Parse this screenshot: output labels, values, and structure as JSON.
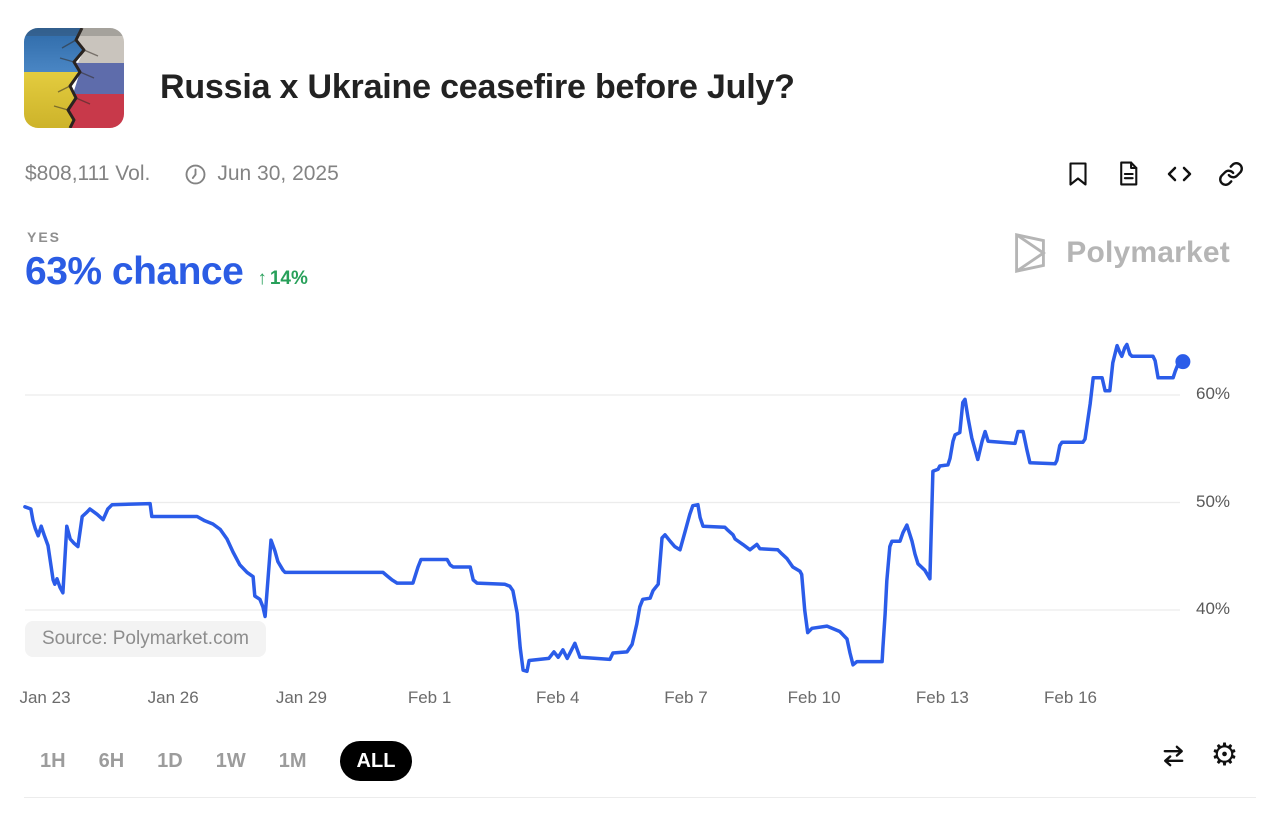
{
  "header": {
    "title": "Russia x Ukraine ceasefire before July?",
    "volume": "$808,111 Vol.",
    "end_date": "Jun 30, 2025"
  },
  "header_action_icons": [
    "bookmark",
    "document",
    "embed-code",
    "copy-link"
  ],
  "outcome": {
    "label": "YES",
    "chance": "63% chance",
    "delta_arrow": "↑",
    "delta": "14%"
  },
  "watermark": {
    "brand": "Polymarket"
  },
  "toolbar": {
    "ranges": [
      "1H",
      "6H",
      "1D",
      "1W",
      "1M",
      "ALL"
    ],
    "active": "ALL"
  },
  "footer_tool_icons": [
    "compare-markets",
    "settings-gear"
  ],
  "colors": {
    "accent_blue": "#2b5ce4",
    "line_blue": "#2b5ce9",
    "positive_green": "#28a05a",
    "grid_gray": "#ececec",
    "watermark_gray": "#b5b5b5"
  },
  "chart_data": {
    "type": "line",
    "title": "YES outcome price history",
    "x_unit": "days since Jan 23",
    "grid": "horizontal",
    "legend": "none",
    "source_label": "Source: Polymarket.com",
    "ylim": [
      32,
      66
    ],
    "y_ticks": [
      {
        "label": "60%",
        "value": 60
      },
      {
        "label": "50%",
        "value": 50
      },
      {
        "label": "40%",
        "value": 40
      }
    ],
    "x_ticks": [
      {
        "label": "Jan 23",
        "day": 0
      },
      {
        "label": "Jan 26",
        "day": 3
      },
      {
        "label": "Jan 29",
        "day": 6
      },
      {
        "label": "Feb 1",
        "day": 9
      },
      {
        "label": "Feb 4",
        "day": 12
      },
      {
        "label": "Feb 7",
        "day": 15
      },
      {
        "label": "Feb 10",
        "day": 18
      },
      {
        "label": "Feb 13",
        "day": 21
      },
      {
        "label": "Feb 16",
        "day": 24
      }
    ],
    "series": [
      {
        "name": "YES",
        "current_value_pct": 63,
        "end_marker": true,
        "points": [
          [
            -0.47,
            49.6
          ],
          [
            -0.33,
            49.4
          ],
          [
            -0.28,
            48.3
          ],
          [
            -0.23,
            47.6
          ],
          [
            -0.16,
            46.9
          ],
          [
            -0.09,
            47.8
          ],
          [
            -0.02,
            47.0
          ],
          [
            0.07,
            46.0
          ],
          [
            0.19,
            42.8
          ],
          [
            0.23,
            42.4
          ],
          [
            0.28,
            42.9
          ],
          [
            0.35,
            42.1
          ],
          [
            0.42,
            41.6
          ],
          [
            0.51,
            47.8
          ],
          [
            0.59,
            46.6
          ],
          [
            0.68,
            46.2
          ],
          [
            0.77,
            45.9
          ],
          [
            0.87,
            48.7
          ],
          [
            0.98,
            49.1
          ],
          [
            1.05,
            49.4
          ],
          [
            1.22,
            48.9
          ],
          [
            1.36,
            48.4
          ],
          [
            1.47,
            49.4
          ],
          [
            1.57,
            49.8
          ],
          [
            2.46,
            49.9
          ],
          [
            2.5,
            48.7
          ],
          [
            3.56,
            48.7
          ],
          [
            3.74,
            48.3
          ],
          [
            3.93,
            48.0
          ],
          [
            4.1,
            47.5
          ],
          [
            4.26,
            46.6
          ],
          [
            4.4,
            45.4
          ],
          [
            4.56,
            44.2
          ],
          [
            4.73,
            43.5
          ],
          [
            4.87,
            43.1
          ],
          [
            4.91,
            41.3
          ],
          [
            5.03,
            41.0
          ],
          [
            5.1,
            40.3
          ],
          [
            5.15,
            39.4
          ],
          [
            5.22,
            43.0
          ],
          [
            5.29,
            46.5
          ],
          [
            5.38,
            45.5
          ],
          [
            5.45,
            44.5
          ],
          [
            5.57,
            43.7
          ],
          [
            5.62,
            43.5
          ],
          [
            7.91,
            43.5
          ],
          [
            8.0,
            43.2
          ],
          [
            8.12,
            42.8
          ],
          [
            8.24,
            42.5
          ],
          [
            8.61,
            42.5
          ],
          [
            8.73,
            44.0
          ],
          [
            8.8,
            44.7
          ],
          [
            9.41,
            44.7
          ],
          [
            9.48,
            44.2
          ],
          [
            9.55,
            44.0
          ],
          [
            9.95,
            44.0
          ],
          [
            10.02,
            42.8
          ],
          [
            10.11,
            42.5
          ],
          [
            10.76,
            42.4
          ],
          [
            10.88,
            42.2
          ],
          [
            10.95,
            41.8
          ],
          [
            11.05,
            39.7
          ],
          [
            11.12,
            36.5
          ],
          [
            11.19,
            34.4
          ],
          [
            11.28,
            34.3
          ],
          [
            11.33,
            35.3
          ],
          [
            11.79,
            35.5
          ],
          [
            11.91,
            36.1
          ],
          [
            12.01,
            35.6
          ],
          [
            12.12,
            36.3
          ],
          [
            12.22,
            35.5
          ],
          [
            12.4,
            36.9
          ],
          [
            12.52,
            35.6
          ],
          [
            13.22,
            35.4
          ],
          [
            13.29,
            36.0
          ],
          [
            13.62,
            36.1
          ],
          [
            13.74,
            36.8
          ],
          [
            13.85,
            38.7
          ],
          [
            13.92,
            40.3
          ],
          [
            13.99,
            41.0
          ],
          [
            14.16,
            41.1
          ],
          [
            14.23,
            41.8
          ],
          [
            14.35,
            42.4
          ],
          [
            14.39,
            44.3
          ],
          [
            14.44,
            46.7
          ],
          [
            14.51,
            47.0
          ],
          [
            14.63,
            46.4
          ],
          [
            14.74,
            45.9
          ],
          [
            14.86,
            45.6
          ],
          [
            14.98,
            47.3
          ],
          [
            15.09,
            48.9
          ],
          [
            15.16,
            49.7
          ],
          [
            15.28,
            49.8
          ],
          [
            15.33,
            48.6
          ],
          [
            15.4,
            47.8
          ],
          [
            15.91,
            47.7
          ],
          [
            15.96,
            47.5
          ],
          [
            16.1,
            47.0
          ],
          [
            16.15,
            46.6
          ],
          [
            16.33,
            46.1
          ],
          [
            16.5,
            45.6
          ],
          [
            16.66,
            46.1
          ],
          [
            16.73,
            45.7
          ],
          [
            17.15,
            45.6
          ],
          [
            17.25,
            45.2
          ],
          [
            17.36,
            44.8
          ],
          [
            17.5,
            44.0
          ],
          [
            17.67,
            43.6
          ],
          [
            17.71,
            43.3
          ],
          [
            17.78,
            40.0
          ],
          [
            17.85,
            37.9
          ],
          [
            17.95,
            38.3
          ],
          [
            18.3,
            38.5
          ],
          [
            18.6,
            38.0
          ],
          [
            18.77,
            37.3
          ],
          [
            18.84,
            36.0
          ],
          [
            18.91,
            34.9
          ],
          [
            19.0,
            35.2
          ],
          [
            19.59,
            35.2
          ],
          [
            19.61,
            36.5
          ],
          [
            19.66,
            39.6
          ],
          [
            19.7,
            42.7
          ],
          [
            19.77,
            45.9
          ],
          [
            19.82,
            46.4
          ],
          [
            20.01,
            46.4
          ],
          [
            20.08,
            47.2
          ],
          [
            20.17,
            47.9
          ],
          [
            20.29,
            46.4
          ],
          [
            20.36,
            45.2
          ],
          [
            20.43,
            44.3
          ],
          [
            20.59,
            43.7
          ],
          [
            20.71,
            42.9
          ],
          [
            20.78,
            52.9
          ],
          [
            20.9,
            53.1
          ],
          [
            20.94,
            53.4
          ],
          [
            21.13,
            53.5
          ],
          [
            21.18,
            54.1
          ],
          [
            21.25,
            55.7
          ],
          [
            21.3,
            56.3
          ],
          [
            21.41,
            56.5
          ],
          [
            21.48,
            59.3
          ],
          [
            21.53,
            59.6
          ],
          [
            21.6,
            57.9
          ],
          [
            21.69,
            56.0
          ],
          [
            21.83,
            54.0
          ],
          [
            21.93,
            55.7
          ],
          [
            22.0,
            56.6
          ],
          [
            22.07,
            55.7
          ],
          [
            22.7,
            55.5
          ],
          [
            22.77,
            56.6
          ],
          [
            22.89,
            56.6
          ],
          [
            22.98,
            54.9
          ],
          [
            23.05,
            53.7
          ],
          [
            23.64,
            53.6
          ],
          [
            23.68,
            53.9
          ],
          [
            23.75,
            55.3
          ],
          [
            23.8,
            55.6
          ],
          [
            24.29,
            55.6
          ],
          [
            24.34,
            55.9
          ],
          [
            24.46,
            59.2
          ],
          [
            24.53,
            61.6
          ],
          [
            24.74,
            61.6
          ],
          [
            24.81,
            60.4
          ],
          [
            24.92,
            60.4
          ],
          [
            24.99,
            63.0
          ],
          [
            25.09,
            64.6
          ],
          [
            25.16,
            63.9
          ],
          [
            25.2,
            63.6
          ],
          [
            25.27,
            64.4
          ],
          [
            25.32,
            64.7
          ],
          [
            25.39,
            63.8
          ],
          [
            25.44,
            63.6
          ],
          [
            25.93,
            63.6
          ],
          [
            25.98,
            63.2
          ],
          [
            26.05,
            61.6
          ],
          [
            26.4,
            61.6
          ],
          [
            26.45,
            62.2
          ],
          [
            26.52,
            62.9
          ],
          [
            26.63,
            63.1
          ]
        ]
      }
    ]
  }
}
